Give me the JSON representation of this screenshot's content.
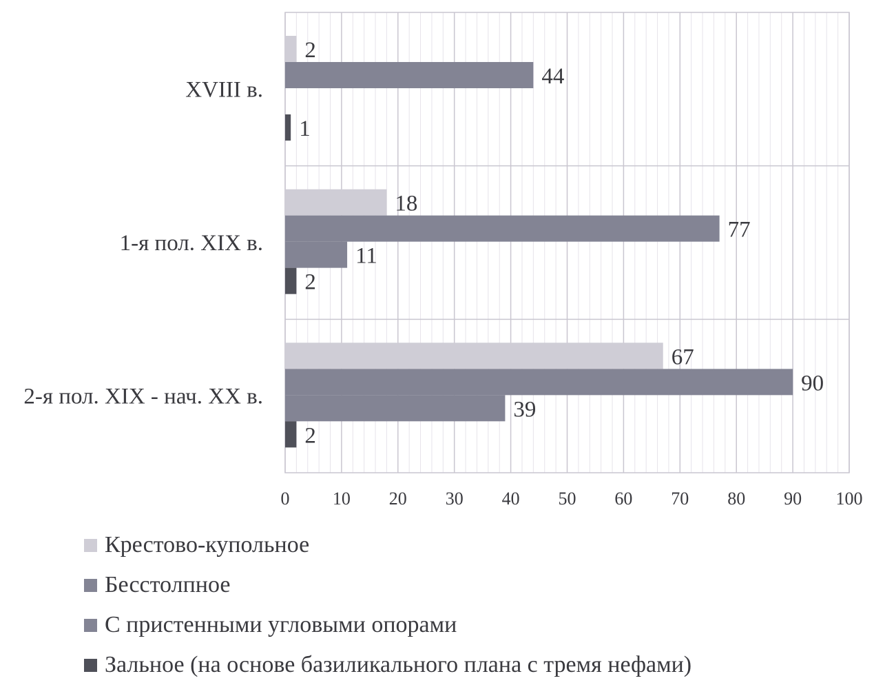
{
  "chart_data": {
    "type": "bar",
    "orientation": "horizontal",
    "categories": [
      "XVIII в.",
      "1-я пол. XIX в.",
      "2-я пол. XIX - нач. XX в."
    ],
    "series": [
      {
        "name": "Крестово-купольное",
        "color": "#cfcdd6",
        "values": [
          2,
          18,
          67
        ]
      },
      {
        "name": "Бесстолпное",
        "color": "#838494",
        "values": [
          44,
          77,
          90
        ]
      },
      {
        "name": "С пристенными угловыми опорами",
        "color": "#838494",
        "values": [
          null,
          11,
          39
        ]
      },
      {
        "name": "Зальное (на основе базиликального плана с тремя нефами)",
        "color": "#4f5059",
        "values": [
          1,
          2,
          2
        ]
      }
    ],
    "xlim": [
      0,
      100
    ],
    "x_ticks": [
      0,
      10,
      20,
      30,
      40,
      50,
      60,
      70,
      80,
      90,
      100
    ],
    "grid": true,
    "legend_position": "bottom"
  }
}
